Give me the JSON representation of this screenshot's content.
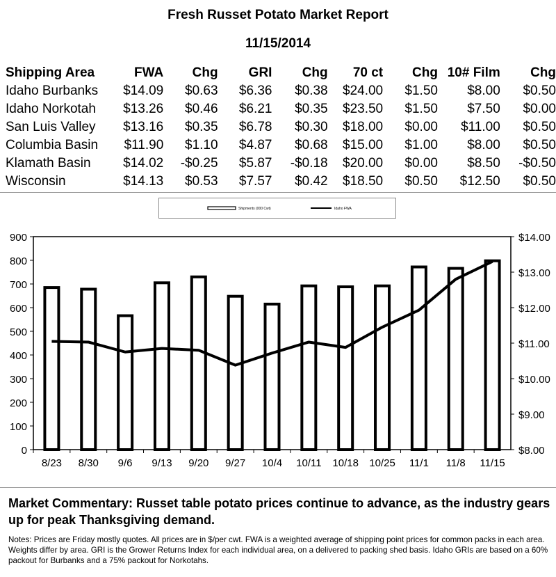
{
  "report": {
    "title": "Fresh Russet Potato Market Report",
    "date": "11/15/2014"
  },
  "table": {
    "headers": [
      "Shipping Area",
      "FWA",
      "Chg",
      "GRI",
      "Chg",
      "70 ct",
      "Chg",
      "10# Film",
      "Chg"
    ],
    "rows": [
      [
        "Idaho Burbanks",
        "$14.09",
        "$0.63",
        "$6.36",
        "$0.38",
        "$24.00",
        "$1.50",
        "$8.00",
        "$0.50"
      ],
      [
        "Idaho Norkotah",
        "$13.26",
        "$0.46",
        "$6.21",
        "$0.35",
        "$23.50",
        "$1.50",
        "$7.50",
        "$0.00"
      ],
      [
        "San Luis Valley",
        "$13.16",
        "$0.35",
        "$6.78",
        "$0.30",
        "$18.00",
        "$0.00",
        "$11.00",
        "$0.50"
      ],
      [
        "Columbia Basin",
        "$11.90",
        "$1.10",
        "$4.87",
        "$0.68",
        "$15.00",
        "$1.00",
        "$8.00",
        "$0.50"
      ],
      [
        "Klamath Basin",
        "$14.02",
        "-$0.25",
        "$5.87",
        "-$0.18",
        "$20.00",
        "$0.00",
        "$8.50",
        "-$0.50"
      ],
      [
        "Wisconsin",
        "$14.13",
        "$0.53",
        "$7.57",
        "$0.42",
        "$18.50",
        "$0.50",
        "$12.50",
        "$0.50"
      ]
    ]
  },
  "chart_data": {
    "type": "bar",
    "categories": [
      "8/23",
      "8/30",
      "9/6",
      "9/13",
      "9/20",
      "9/27",
      "10/4",
      "10/11",
      "10/18",
      "10/25",
      "11/1",
      "11/8",
      "11/15"
    ],
    "series": [
      {
        "name": "Shipments (000 Cwt)",
        "type": "bar",
        "axis": "left",
        "values": [
          685,
          678,
          566,
          705,
          730,
          648,
          615,
          692,
          688,
          692,
          772,
          766,
          798
        ]
      },
      {
        "name": "Idaho FWA",
        "type": "line",
        "axis": "right",
        "values": [
          11.05,
          11.03,
          10.75,
          10.85,
          10.8,
          10.38,
          10.72,
          11.03,
          10.88,
          11.45,
          11.93,
          12.8,
          13.3
        ]
      }
    ],
    "yleft": {
      "ylim": [
        0,
        900
      ],
      "ticks": [
        "0",
        "100",
        "200",
        "300",
        "400",
        "500",
        "600",
        "700",
        "800",
        "900"
      ]
    },
    "yright": {
      "ylim": [
        8,
        14
      ],
      "ticks": [
        "$8.00",
        "$9.00",
        "$10.00",
        "$11.00",
        "$12.00",
        "$13.00",
        "$14.00"
      ]
    },
    "legend_position": "top-center",
    "grid": false,
    "colors": {
      "bars_fill": "#ffffff",
      "bars_stroke": "#000000",
      "line": "#000000"
    }
  },
  "commentary": "Market Commentary: Russet table potato prices continue to advance, as the industry gears up for peak Thanksgiving demand.",
  "notes": "Notes: Prices are Friday mostly quotes. All prices are in $/per cwt. FWA is a weighted average of shipping point prices for  common packs in each area. Weights differ by area. GRI is the Grower Returns Index for each individual area, on a delivered to packing shed basis. Idaho GRIs are based on a 60% packout for Burbanks and a 75% packout for Norkotahs."
}
